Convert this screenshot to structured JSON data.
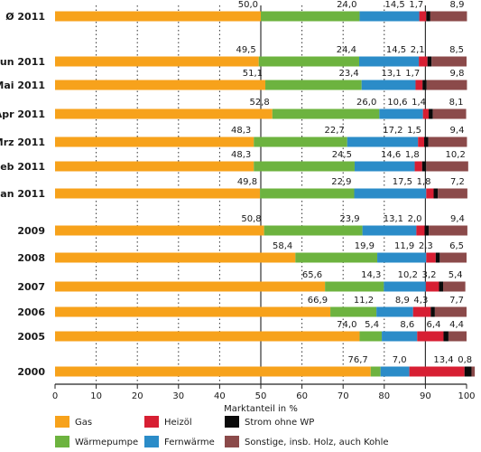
{
  "chart_data": {
    "type": "bar",
    "orientation": "horizontal",
    "stacked": true,
    "xlabel": "Marktanteil in %",
    "xlim": [
      0,
      100
    ],
    "xticks": [
      "0",
      "10",
      "20",
      "30",
      "40",
      "50",
      "60",
      "70",
      "80",
      "90",
      "100"
    ],
    "grid": "vertical dotted",
    "legend_position": "bottom",
    "categories": [
      "Ø 2011",
      "Jun 2011",
      "Mai 2011",
      "Apr 2011",
      "Mrz 2011",
      "Feb 2011",
      "Jan 2011",
      "2009",
      "2008",
      "2007",
      "2006",
      "2005",
      "2000"
    ],
    "series": [
      {
        "name": "Gas",
        "color": "#f7a21b",
        "values": [
          50.0,
          49.5,
          51.1,
          52.8,
          48.3,
          48.3,
          49.8,
          50.8,
          58.4,
          65.6,
          66.9,
          74.0,
          76.7
        ],
        "labels": [
          "50,0",
          "49,5",
          "51,1",
          "52,8",
          "48,3",
          "48,3",
          "49,8",
          "50,8",
          "58,4",
          "65,6",
          "66,9",
          "74,0",
          "76,7"
        ]
      },
      {
        "name": "Wärmepumpe",
        "color": "#6db33f",
        "values": [
          24.0,
          24.4,
          23.4,
          26.0,
          22.7,
          24.5,
          22.9,
          23.9,
          19.9,
          14.3,
          11.2,
          5.4,
          2.4
        ],
        "labels": [
          "24,0",
          "24,4",
          "23,4",
          "26,0",
          "22,7",
          "24,5",
          "22,9",
          "23,9",
          "19,9",
          "14,3",
          "11,2",
          "5,4",
          ""
        ]
      },
      {
        "name": "Fernwärme",
        "color": "#2b8cc8",
        "values": [
          14.5,
          14.5,
          13.1,
          10.6,
          17.2,
          14.6,
          17.5,
          13.1,
          11.9,
          10.2,
          8.9,
          8.6,
          7.0
        ],
        "labels": [
          "14,5",
          "14,5",
          "13,1",
          "10,6",
          "17,2",
          "14,6",
          "17,5",
          "13,1",
          "11,9",
          "10,2",
          "8,9",
          "8,6",
          "7,0"
        ]
      },
      {
        "name": "Heizöl",
        "color": "#d71f33",
        "values": [
          1.7,
          2.1,
          1.7,
          1.4,
          1.5,
          1.8,
          1.8,
          2.0,
          2.3,
          3.2,
          4.3,
          6.4,
          13.4
        ],
        "labels": [
          "1,7",
          "2,1",
          "1,7",
          "1,4",
          "1,5",
          "1,8",
          "1,8",
          "2,0",
          "2,3",
          "3,2",
          "4,3",
          "6,4",
          "13,4"
        ]
      },
      {
        "name": "Strom ohne WP",
        "color": "#0a0a0a",
        "values": [
          1.0,
          1.0,
          1.0,
          1.0,
          1.0,
          1.0,
          1.0,
          1.0,
          1.0,
          1.0,
          1.0,
          1.2,
          1.7
        ],
        "labels": [
          "",
          "",
          "",
          "",
          "",
          "",
          "",
          "",
          "",
          "",
          "",
          "",
          ""
        ]
      },
      {
        "name": "Sonstige, insb. Holz, auch Kohle",
        "color": "#8b4a4a",
        "values": [
          8.9,
          8.5,
          9.8,
          8.1,
          9.4,
          10.2,
          7.2,
          9.4,
          6.5,
          5.4,
          7.7,
          4.4,
          0.8
        ],
        "labels": [
          "8,9",
          "8,5",
          "9,8",
          "8,1",
          "9,4",
          "10,2",
          "7,2",
          "9,4",
          "6,5",
          "5,4",
          "7,7",
          "4,4",
          "0,8"
        ]
      }
    ]
  }
}
